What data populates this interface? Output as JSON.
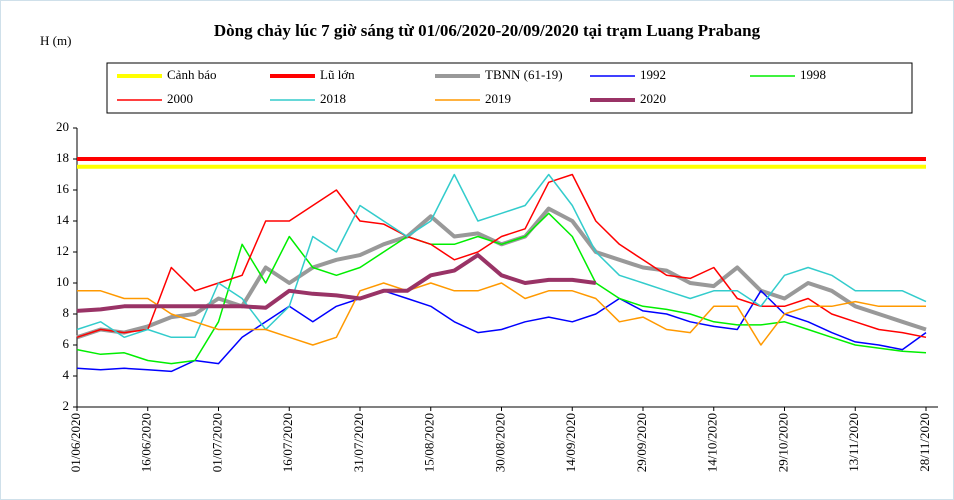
{
  "chart_data": {
    "type": "line",
    "title": "Dòng chảy lúc 7 giờ sáng từ 01/06/2020-20/09/2020 tại trạm Luang Prabang",
    "y_label": "H (m)",
    "categories": [
      "01/06/2020",
      null,
      null,
      "16/06/2020",
      null,
      null,
      "01/07/2020",
      null,
      null,
      "16/07/2020",
      null,
      null,
      "31/07/2020",
      null,
      null,
      "15/08/2020",
      null,
      null,
      "30/08/2020",
      null,
      null,
      "14/09/2020",
      null,
      null,
      "29/09/2020",
      null,
      null,
      "14/10/2020",
      null,
      null,
      "29/10/2020",
      null,
      null,
      "13/11/2020",
      null,
      null,
      "28/11/2020"
    ],
    "ylim": [
      2,
      20
    ],
    "yticks": [
      2,
      4,
      6,
      8,
      10,
      12,
      14,
      16,
      18,
      20
    ],
    "grid": false,
    "series": [
      {
        "name": "Cảnh báo",
        "color": "#ffff00",
        "width": 4,
        "values": [
          17.5,
          17.5,
          17.5,
          17.5,
          17.5,
          17.5,
          17.5,
          17.5,
          17.5,
          17.5,
          17.5,
          17.5,
          17.5,
          17.5,
          17.5,
          17.5,
          17.5,
          17.5,
          17.5,
          17.5,
          17.5,
          17.5,
          17.5,
          17.5,
          17.5,
          17.5,
          17.5,
          17.5,
          17.5,
          17.5,
          17.5,
          17.5,
          17.5,
          17.5,
          17.5,
          17.5,
          17.5
        ]
      },
      {
        "name": "Lũ lớn",
        "color": "#ff0000",
        "width": 4,
        "values": [
          18,
          18,
          18,
          18,
          18,
          18,
          18,
          18,
          18,
          18,
          18,
          18,
          18,
          18,
          18,
          18,
          18,
          18,
          18,
          18,
          18,
          18,
          18,
          18,
          18,
          18,
          18,
          18,
          18,
          18,
          18,
          18,
          18,
          18,
          18,
          18,
          18
        ]
      },
      {
        "name": "TBNN (61-19)",
        "color": "#999999",
        "width": 4,
        "values": [
          6.5,
          7,
          6.8,
          7.2,
          7.8,
          8,
          9,
          8.5,
          11,
          10,
          11,
          11.5,
          11.8,
          12.5,
          13,
          14.3,
          13,
          13.2,
          12.5,
          13,
          14.8,
          14,
          12,
          11.5,
          11,
          10.8,
          10,
          9.8,
          11,
          9.5,
          9,
          10,
          9.5,
          8.5,
          8,
          7.5,
          7
        ]
      },
      {
        "name": "1992",
        "color": "#0000ff",
        "width": 1.5,
        "values": [
          4.5,
          4.4,
          4.5,
          4.4,
          4.3,
          5,
          4.8,
          6.5,
          7.5,
          8.5,
          7.5,
          8.5,
          9,
          9.5,
          9,
          8.5,
          7.5,
          6.8,
          7,
          7.5,
          7.8,
          7.5,
          8,
          9,
          8.2,
          8,
          7.5,
          7.2,
          7,
          9.5,
          8,
          7.5,
          6.8,
          6.2,
          6,
          5.7,
          6.8
        ]
      },
      {
        "name": "1998",
        "color": "#00ee00",
        "width": 1.5,
        "values": [
          5.7,
          5.4,
          5.5,
          5,
          4.8,
          5,
          7.5,
          12.5,
          10,
          13,
          11,
          10.5,
          11,
          12,
          13,
          12.5,
          12.5,
          13,
          12.5,
          13,
          14.5,
          13,
          10,
          9,
          8.5,
          8.3,
          8,
          7.5,
          7.3,
          7.3,
          7.5,
          7,
          6.5,
          6,
          5.8,
          5.6,
          5.5
        ]
      },
      {
        "name": "2000",
        "color": "#ff0000",
        "width": 1.5,
        "values": [
          6.5,
          7,
          6.8,
          7,
          11,
          9.5,
          10,
          10.5,
          14,
          14,
          15,
          16,
          14,
          13.8,
          13,
          12.5,
          11.5,
          12,
          13,
          13.5,
          16.5,
          17,
          14,
          12.5,
          11.5,
          10.5,
          10.3,
          11,
          9,
          8.5,
          8.5,
          9,
          8,
          7.5,
          7,
          6.8,
          6.5
        ]
      },
      {
        "name": "2018",
        "color": "#33cccc",
        "width": 1.5,
        "values": [
          7,
          7.5,
          6.5,
          7,
          6.5,
          6.5,
          10,
          9,
          7,
          8.5,
          13,
          12,
          15,
          14,
          13,
          14,
          17,
          14,
          14.5,
          15,
          17,
          15,
          12,
          10.5,
          10,
          9.5,
          9,
          9.5,
          9.5,
          8.5,
          10.5,
          11,
          10.5,
          9.5,
          9.5,
          9.5,
          8.8
        ]
      },
      {
        "name": "2019",
        "color": "#ff9900",
        "width": 1.5,
        "values": [
          9.5,
          9.5,
          9,
          9,
          8,
          7.5,
          7,
          7,
          7,
          6.5,
          6,
          6.5,
          9.5,
          10,
          9.5,
          10,
          9.5,
          9.5,
          10,
          9,
          9.5,
          9.5,
          9,
          7.5,
          7.8,
          7,
          6.8,
          8.5,
          8.5,
          6,
          8,
          8.5,
          8.5,
          8.8,
          8.5,
          8.5,
          8.5
        ]
      },
      {
        "name": "2020",
        "color": "#993366",
        "width": 4,
        "values": [
          8.2,
          8.3,
          8.5,
          8.5,
          8.5,
          8.5,
          8.5,
          8.5,
          8.4,
          9.5,
          9.3,
          9.2,
          9,
          9.5,
          9.5,
          10.5,
          10.8,
          11.8,
          10.5,
          10,
          10.2,
          10.2,
          10,
          null,
          null,
          null,
          null,
          null,
          null,
          null,
          null,
          null,
          null,
          null,
          null,
          null,
          null
        ]
      }
    ]
  }
}
